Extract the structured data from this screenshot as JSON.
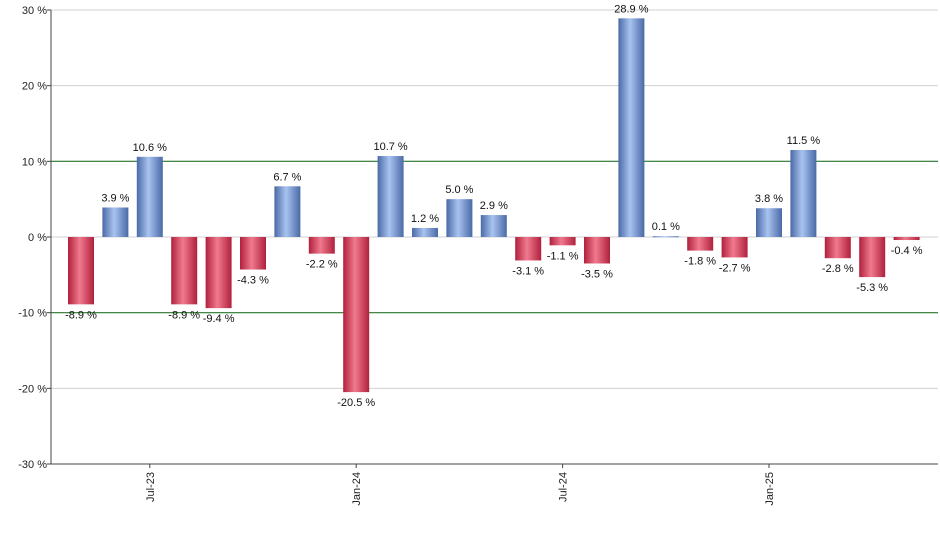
{
  "chart_data": {
    "type": "bar",
    "title": "",
    "xlabel": "",
    "ylabel": "",
    "ylim": [
      -30,
      30
    ],
    "yticks": [
      -30,
      -20,
      -10,
      0,
      10,
      20,
      30
    ],
    "ytick_labels": [
      "-30 %",
      "-20 %",
      "-10 %",
      "0 %",
      "10 %",
      "20 %",
      "30 %"
    ],
    "reference_lines": [
      10,
      -10
    ],
    "grid": true,
    "x_tick_labels": [
      {
        "index": 2,
        "label": "Jul-23"
      },
      {
        "index": 8,
        "label": "Jan-24"
      },
      {
        "index": 14,
        "label": "Jul-24"
      },
      {
        "index": 20,
        "label": "Jan-25"
      }
    ],
    "values": [
      -8.9,
      3.9,
      10.6,
      -8.9,
      -9.4,
      -4.3,
      6.7,
      -2.2,
      -20.5,
      10.7,
      1.2,
      5.0,
      2.9,
      -3.1,
      -1.1,
      -3.5,
      28.9,
      0.1,
      -1.8,
      -2.7,
      3.8,
      11.5,
      -2.8,
      -5.3,
      -0.4
    ],
    "value_labels": [
      "-8.9 %",
      "3.9 %",
      "10.6 %",
      "-8.9 %",
      "-9.4 %",
      "-4.3 %",
      "6.7 %",
      "-2.2 %",
      "-20.5 %",
      "10.7 %",
      "1.2 %",
      "5.0 %",
      "2.9 %",
      "-3.1 %",
      "-1.1 %",
      "-3.5 %",
      "28.9 %",
      "0.1 %",
      "-1.8 %",
      "-2.7 %",
      "3.8 %",
      "11.5 %",
      "-2.8 %",
      "-5.3 %",
      "-0.4 %"
    ],
    "colors": {
      "positive_dark": "#4a6aa6",
      "positive_light": "#a9c3f0",
      "negative_dark": "#b0203c",
      "negative_light": "#f07a8e",
      "reference_line": "#2e7d32",
      "grid": "#d0d0d0",
      "axis": "#444444"
    }
  }
}
